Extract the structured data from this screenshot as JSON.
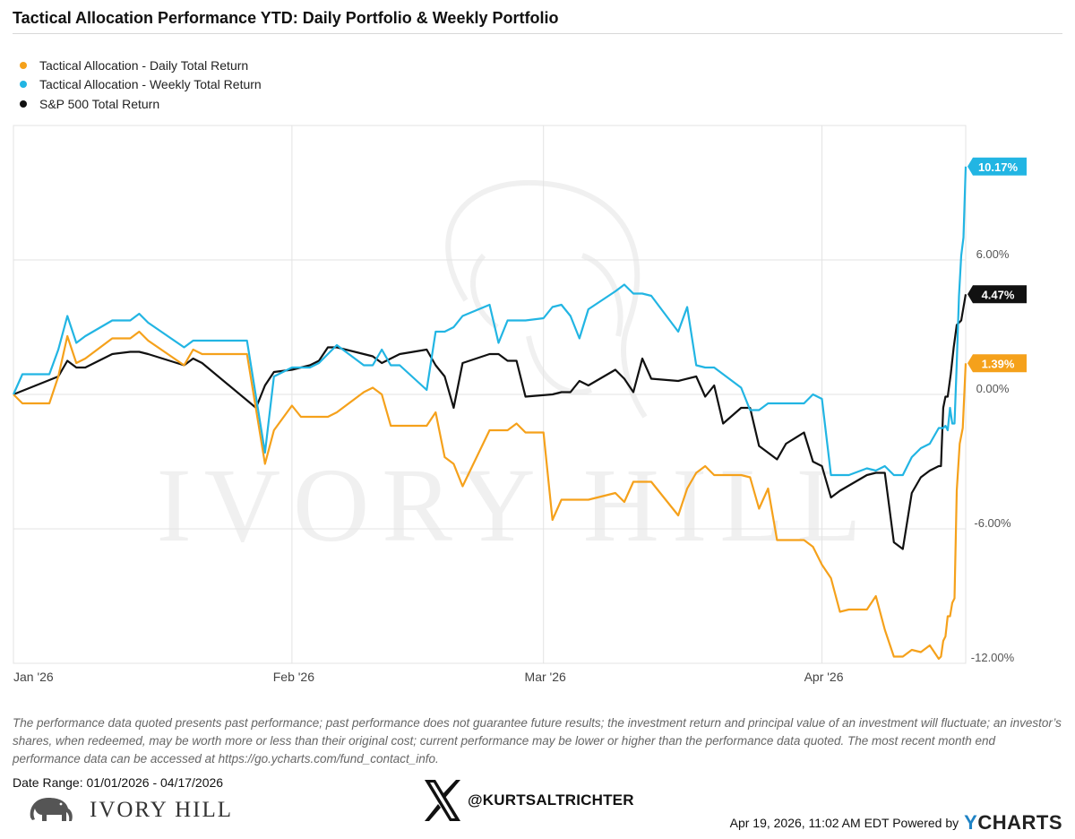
{
  "title": "Tactical Allocation Performance YTD: Daily Portfolio & Weekly Portfolio",
  "legend": [
    {
      "label": "Tactical Allocation - Daily Total Return",
      "color": "#f5a11b"
    },
    {
      "label": "Tactical Allocation - Weekly Total Return",
      "color": "#22b5e3"
    },
    {
      "label": "S&P 500 Total Return",
      "color": "#111111"
    }
  ],
  "watermark": "IVORY HILL",
  "disclaimer": "The performance data quoted presents past performance; past performance does not guarantee future results; the investment return and principal value of an investment will fluctuate; an investor’s shares, when redeemed, may be worth more or less than their original cost; current performance may be lower or higher than the performance data quoted. The most recent month end performance data can be accessed at https://go.ycharts.com/fund_contact_info.",
  "date_range": "Date Range: 01/01/2026 - 04/17/2026",
  "brand_logo_text": "IVORY HILL",
  "social_handle": "@KURTSALTRICHTER",
  "footer_text": "Apr 19, 2026, 11:02 AM EDT Powered by",
  "ycharts_y": "Y",
  "ycharts_rest": "CHARTS",
  "chart_data": {
    "type": "line",
    "title": "Tactical Allocation Performance YTD: Daily Portfolio & Weekly Portfolio",
    "x_start": "2026-01-01",
    "x_end": "2026-04-17",
    "y_range": [
      -12,
      12
    ],
    "y_ticks": [
      {
        "value": 6,
        "label": "6.00%"
      },
      {
        "value": 0,
        "label": "0.00%"
      },
      {
        "value": -6,
        "label": "-6.00%"
      },
      {
        "value": -12,
        "label": "-12.00%"
      }
    ],
    "x_ticks": [
      {
        "date": "2026-01-01",
        "label": "Jan '26"
      },
      {
        "date": "2026-02-01",
        "label": "Feb '26"
      },
      {
        "date": "2026-03-01",
        "label": "Mar '26"
      },
      {
        "date": "2026-04-01",
        "label": "Apr '26"
      }
    ],
    "grid": true,
    "legend_position": "top-left",
    "series": [
      {
        "name": "Tactical Allocation - Daily Total Return",
        "color": "#f5a11b",
        "end_label": "1.39%",
        "points": [
          [
            "2026-01-01",
            0
          ],
          [
            "2026-01-02",
            -0.4
          ],
          [
            "2026-01-05",
            -0.4
          ],
          [
            "2026-01-06",
            0.8
          ],
          [
            "2026-01-07",
            2.6
          ],
          [
            "2026-01-08",
            1.4
          ],
          [
            "2026-01-09",
            1.6
          ],
          [
            "2026-01-12",
            2.5
          ],
          [
            "2026-01-13",
            2.5
          ],
          [
            "2026-01-14",
            2.5
          ],
          [
            "2026-01-15",
            2.8
          ],
          [
            "2026-01-16",
            2.4
          ],
          [
            "2026-01-20",
            1.3
          ],
          [
            "2026-01-21",
            2.0
          ],
          [
            "2026-01-22",
            1.8
          ],
          [
            "2026-01-23",
            1.8
          ],
          [
            "2026-01-26",
            1.8
          ],
          [
            "2026-01-27",
            1.8
          ],
          [
            "2026-01-29",
            -3.1
          ],
          [
            "2026-01-30",
            -1.6
          ],
          [
            "2026-02-01",
            -0.5
          ],
          [
            "2026-02-02",
            -1.0
          ],
          [
            "2026-02-03",
            -1.0
          ],
          [
            "2026-02-04",
            -1.0
          ],
          [
            "2026-02-05",
            -1.0
          ],
          [
            "2026-02-06",
            -0.8
          ],
          [
            "2026-02-09",
            0.1
          ],
          [
            "2026-02-10",
            0.3
          ],
          [
            "2026-02-11",
            0.0
          ],
          [
            "2026-02-12",
            -1.4
          ],
          [
            "2026-02-13",
            -1.4
          ],
          [
            "2026-02-16",
            -1.4
          ],
          [
            "2026-02-17",
            -0.8
          ],
          [
            "2026-02-18",
            -2.8
          ],
          [
            "2026-02-19",
            -3.1
          ],
          [
            "2026-02-20",
            -4.1
          ],
          [
            "2026-02-23",
            -1.6
          ],
          [
            "2026-02-24",
            -1.6
          ],
          [
            "2026-02-25",
            -1.6
          ],
          [
            "2026-02-26",
            -1.3
          ],
          [
            "2026-02-27",
            -1.7
          ],
          [
            "2026-03-01",
            -1.7
          ],
          [
            "2026-03-02",
            -5.6
          ],
          [
            "2026-03-03",
            -4.7
          ],
          [
            "2026-03-04",
            -4.7
          ],
          [
            "2026-03-05",
            -4.7
          ],
          [
            "2026-03-06",
            -4.7
          ],
          [
            "2026-03-09",
            -4.4
          ],
          [
            "2026-03-10",
            -4.8
          ],
          [
            "2026-03-11",
            -3.9
          ],
          [
            "2026-03-12",
            -3.9
          ],
          [
            "2026-03-13",
            -3.9
          ],
          [
            "2026-03-16",
            -5.4
          ],
          [
            "2026-03-17",
            -4.2
          ],
          [
            "2026-03-18",
            -3.5
          ],
          [
            "2026-03-19",
            -3.2
          ],
          [
            "2026-03-20",
            -3.6
          ],
          [
            "2026-03-23",
            -3.6
          ],
          [
            "2026-03-24",
            -3.7
          ],
          [
            "2026-03-25",
            -5.1
          ],
          [
            "2026-03-26",
            -4.2
          ],
          [
            "2026-03-27",
            -6.5
          ],
          [
            "2026-03-30",
            -6.5
          ],
          [
            "2026-03-31",
            -6.8
          ],
          [
            "2026-04-01",
            -7.6
          ],
          [
            "2026-04-02",
            -8.2
          ],
          [
            "2026-04-03",
            -9.7
          ],
          [
            "2026-04-04",
            -9.6
          ],
          [
            "2026-04-06",
            -9.6
          ],
          [
            "2026-04-07",
            -9.0
          ],
          [
            "2026-04-08",
            -10.5
          ],
          [
            "2026-04-09",
            -11.7
          ],
          [
            "2026-04-10",
            -11.7
          ],
          [
            "2026-04-11",
            -11.4
          ],
          [
            "2026-04-12",
            -11.5
          ],
          [
            "2026-04-13",
            -11.2
          ],
          [
            "2026-04-14",
            -11.8
          ],
          [
            "2026-04-15",
            -11.7
          ],
          [
            "2026-04-15",
            -11.0
          ],
          [
            "2026-04-15",
            -10.8
          ],
          [
            "2026-04-15",
            -9.9
          ],
          [
            "2026-04-16",
            -9.9
          ],
          [
            "2026-04-16",
            -9.3
          ],
          [
            "2026-04-16",
            -9.1
          ],
          [
            "2026-04-16",
            -4.3
          ],
          [
            "2026-04-17",
            -2.2
          ],
          [
            "2026-04-17",
            -1.5
          ],
          [
            "2026-04-17",
            1.39
          ]
        ]
      },
      {
        "name": "Tactical Allocation - Weekly Total Return",
        "color": "#22b5e3",
        "end_label": "10.17%",
        "points": [
          [
            "2026-01-01",
            0
          ],
          [
            "2026-01-02",
            0.9
          ],
          [
            "2026-01-05",
            0.9
          ],
          [
            "2026-01-06",
            2.0
          ],
          [
            "2026-01-07",
            3.5
          ],
          [
            "2026-01-08",
            2.3
          ],
          [
            "2026-01-09",
            2.6
          ],
          [
            "2026-01-12",
            3.3
          ],
          [
            "2026-01-13",
            3.3
          ],
          [
            "2026-01-14",
            3.3
          ],
          [
            "2026-01-15",
            3.6
          ],
          [
            "2026-01-16",
            3.2
          ],
          [
            "2026-01-20",
            2.1
          ],
          [
            "2026-01-21",
            2.4
          ],
          [
            "2026-01-22",
            2.4
          ],
          [
            "2026-01-23",
            2.4
          ],
          [
            "2026-01-26",
            2.4
          ],
          [
            "2026-01-27",
            2.4
          ],
          [
            "2026-01-29",
            -2.6
          ],
          [
            "2026-01-30",
            0.8
          ],
          [
            "2026-02-01",
            1.2
          ],
          [
            "2026-02-02",
            1.2
          ],
          [
            "2026-02-03",
            1.2
          ],
          [
            "2026-02-04",
            1.4
          ],
          [
            "2026-02-05",
            1.8
          ],
          [
            "2026-02-06",
            2.2
          ],
          [
            "2026-02-09",
            1.3
          ],
          [
            "2026-02-10",
            1.3
          ],
          [
            "2026-02-11",
            2.0
          ],
          [
            "2026-02-12",
            1.3
          ],
          [
            "2026-02-13",
            1.3
          ],
          [
            "2026-02-16",
            0.2
          ],
          [
            "2026-02-17",
            2.8
          ],
          [
            "2026-02-18",
            2.8
          ],
          [
            "2026-02-19",
            3.0
          ],
          [
            "2026-02-20",
            3.5
          ],
          [
            "2026-02-23",
            4.0
          ],
          [
            "2026-02-24",
            2.3
          ],
          [
            "2026-02-25",
            3.3
          ],
          [
            "2026-02-26",
            3.3
          ],
          [
            "2026-02-27",
            3.3
          ],
          [
            "2026-03-01",
            3.4
          ],
          [
            "2026-03-02",
            3.9
          ],
          [
            "2026-03-03",
            4.0
          ],
          [
            "2026-03-04",
            3.5
          ],
          [
            "2026-03-05",
            2.5
          ],
          [
            "2026-03-06",
            3.8
          ],
          [
            "2026-03-09",
            4.6
          ],
          [
            "2026-03-10",
            4.9
          ],
          [
            "2026-03-11",
            4.5
          ],
          [
            "2026-03-12",
            4.5
          ],
          [
            "2026-03-13",
            4.4
          ],
          [
            "2026-03-16",
            2.8
          ],
          [
            "2026-03-17",
            3.9
          ],
          [
            "2026-03-18",
            1.3
          ],
          [
            "2026-03-19",
            1.2
          ],
          [
            "2026-03-20",
            1.2
          ],
          [
            "2026-03-23",
            0.3
          ],
          [
            "2026-03-24",
            -0.7
          ],
          [
            "2026-03-25",
            -0.7
          ],
          [
            "2026-03-26",
            -0.4
          ],
          [
            "2026-03-27",
            -0.4
          ],
          [
            "2026-03-30",
            -0.4
          ],
          [
            "2026-03-31",
            0.0
          ],
          [
            "2026-04-01",
            -0.2
          ],
          [
            "2026-04-02",
            -3.6
          ],
          [
            "2026-04-03",
            -3.6
          ],
          [
            "2026-04-04",
            -3.6
          ],
          [
            "2026-04-06",
            -3.3
          ],
          [
            "2026-04-07",
            -3.4
          ],
          [
            "2026-04-08",
            -3.2
          ],
          [
            "2026-04-09",
            -3.6
          ],
          [
            "2026-04-10",
            -3.6
          ],
          [
            "2026-04-11",
            -2.8
          ],
          [
            "2026-04-12",
            -2.4
          ],
          [
            "2026-04-13",
            -2.2
          ],
          [
            "2026-04-14",
            -1.5
          ],
          [
            "2026-04-15",
            -1.5
          ],
          [
            "2026-04-15",
            -1.5
          ],
          [
            "2026-04-15",
            -1.4
          ],
          [
            "2026-04-15",
            -1.6
          ],
          [
            "2026-04-16",
            -0.6
          ],
          [
            "2026-04-16",
            -1.3
          ],
          [
            "2026-04-16",
            -1.3
          ],
          [
            "2026-04-16",
            1.4
          ],
          [
            "2026-04-17",
            4.4
          ],
          [
            "2026-04-17",
            6.2
          ],
          [
            "2026-04-17",
            7.0
          ],
          [
            "2026-04-17",
            10.17
          ]
        ]
      },
      {
        "name": "S&P 500 Total Return",
        "color": "#111111",
        "end_label": "4.47%",
        "points": [
          [
            "2026-01-01",
            0
          ],
          [
            "2026-01-06",
            0.8
          ],
          [
            "2026-01-07",
            1.5
          ],
          [
            "2026-01-08",
            1.2
          ],
          [
            "2026-01-09",
            1.2
          ],
          [
            "2026-01-12",
            1.8
          ],
          [
            "2026-01-14",
            1.9
          ],
          [
            "2026-01-15",
            1.9
          ],
          [
            "2026-01-16",
            1.8
          ],
          [
            "2026-01-20",
            1.3
          ],
          [
            "2026-01-21",
            1.6
          ],
          [
            "2026-01-22",
            1.4
          ],
          [
            "2026-01-28",
            -0.6
          ],
          [
            "2026-01-29",
            0.4
          ],
          [
            "2026-01-30",
            1.0
          ],
          [
            "2026-02-01",
            1.1
          ],
          [
            "2026-02-03",
            1.3
          ],
          [
            "2026-02-04",
            1.5
          ],
          [
            "2026-02-05",
            2.1
          ],
          [
            "2026-02-06",
            2.1
          ],
          [
            "2026-02-09",
            1.8
          ],
          [
            "2026-02-10",
            1.7
          ],
          [
            "2026-02-11",
            1.4
          ],
          [
            "2026-02-13",
            1.8
          ],
          [
            "2026-02-16",
            2.0
          ],
          [
            "2026-02-17",
            1.3
          ],
          [
            "2026-02-18",
            0.8
          ],
          [
            "2026-02-19",
            -0.6
          ],
          [
            "2026-02-20",
            1.4
          ],
          [
            "2026-02-23",
            1.8
          ],
          [
            "2026-02-24",
            1.8
          ],
          [
            "2026-02-25",
            1.5
          ],
          [
            "2026-02-26",
            1.5
          ],
          [
            "2026-02-27",
            -0.1
          ],
          [
            "2026-03-02",
            0.0
          ],
          [
            "2026-03-03",
            0.1
          ],
          [
            "2026-03-04",
            0.1
          ],
          [
            "2026-03-05",
            0.6
          ],
          [
            "2026-03-06",
            0.4
          ],
          [
            "2026-03-09",
            1.1
          ],
          [
            "2026-03-10",
            0.7
          ],
          [
            "2026-03-11",
            0.1
          ],
          [
            "2026-03-12",
            1.6
          ],
          [
            "2026-03-13",
            0.7
          ],
          [
            "2026-03-16",
            0.6
          ],
          [
            "2026-03-18",
            0.8
          ],
          [
            "2026-03-19",
            -0.1
          ],
          [
            "2026-03-20",
            0.4
          ],
          [
            "2026-03-21",
            -1.3
          ],
          [
            "2026-03-23",
            -0.6
          ],
          [
            "2026-03-24",
            -0.6
          ],
          [
            "2026-03-25",
            -2.3
          ],
          [
            "2026-03-27",
            -2.9
          ],
          [
            "2026-03-28",
            -2.2
          ],
          [
            "2026-03-30",
            -1.7
          ],
          [
            "2026-03-31",
            -3.0
          ],
          [
            "2026-04-01",
            -3.2
          ],
          [
            "2026-04-02",
            -4.6
          ],
          [
            "2026-04-03",
            -4.3
          ],
          [
            "2026-04-06",
            -3.6
          ],
          [
            "2026-04-07",
            -3.5
          ],
          [
            "2026-04-08",
            -3.5
          ],
          [
            "2026-04-09",
            -6.6
          ],
          [
            "2026-04-10",
            -6.9
          ],
          [
            "2026-04-11",
            -4.4
          ],
          [
            "2026-04-12",
            -3.7
          ],
          [
            "2026-04-13",
            -3.4
          ],
          [
            "2026-04-14",
            -3.2
          ],
          [
            "2026-04-15",
            -3.2
          ],
          [
            "2026-04-15",
            -0.6
          ],
          [
            "2026-04-15",
            -0.1
          ],
          [
            "2026-04-15",
            -0.1
          ],
          [
            "2026-04-16",
            0.9
          ],
          [
            "2026-04-16",
            2.1
          ],
          [
            "2026-04-16",
            3.1
          ],
          [
            "2026-04-17",
            3.3
          ],
          [
            "2026-04-17",
            4.47
          ]
        ]
      }
    ]
  }
}
